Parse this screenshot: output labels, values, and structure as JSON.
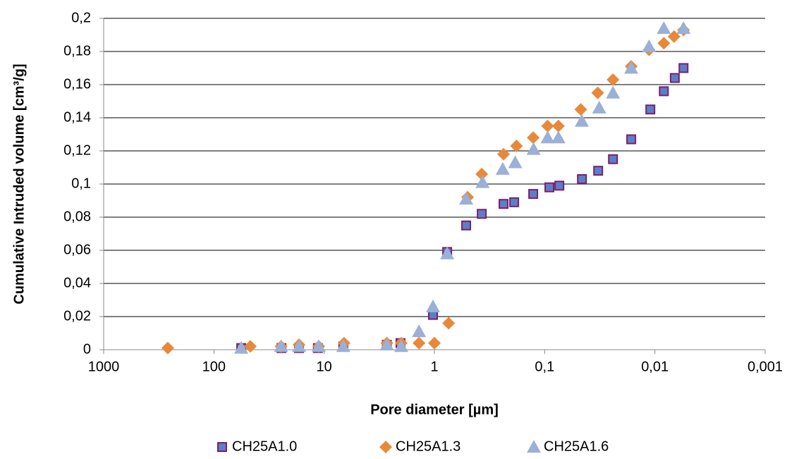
{
  "chart_data": {
    "type": "scatter",
    "x_label": "Pore diameter [µm]",
    "y_label": "Cumulative Intruded volume [cm³/g]",
    "x_scale": "log",
    "xlim": [
      1000,
      0.001
    ],
    "xticks": [
      1000,
      100,
      10,
      1,
      {
        "value": 0.1,
        "label": "0,1"
      },
      {
        "value": 0.01,
        "label": "0,01"
      },
      {
        "value": 0.001,
        "label": "0,001"
      }
    ],
    "ylim": [
      0,
      0.2
    ],
    "yticks": [
      0,
      {
        "value": 0.02,
        "label": "0,02"
      },
      {
        "value": 0.04,
        "label": "0,04"
      },
      {
        "value": 0.06,
        "label": "0,06"
      },
      {
        "value": 0.08,
        "label": "0,08"
      },
      {
        "value": 0.1,
        "label": "0,1"
      },
      {
        "value": 0.12,
        "label": "0,12"
      },
      {
        "value": 0.14,
        "label": "0,14"
      },
      {
        "value": 0.16,
        "label": "0,16"
      },
      {
        "value": 0.18,
        "label": "0,18"
      },
      {
        "value": 0.2,
        "label": "0,2"
      }
    ],
    "grid": true,
    "legend": "bottom",
    "series": [
      {
        "name": "CH25A1.0",
        "marker": "square",
        "color": "#5b7fc7",
        "edge_color": "#7a1f6f",
        "x": [
          56.5,
          24.4,
          16.9,
          11.4,
          6.7,
          2.7,
          2.03,
          1.03,
          0.766,
          0.515,
          0.372,
          0.236,
          0.189,
          0.127,
          0.0906,
          0.0736,
          0.0459,
          0.0327,
          0.024,
          0.0164,
          0.011,
          0.0083,
          0.0066,
          0.0055
        ],
        "values": [
          0.001,
          0.001,
          0.001,
          0.001,
          0.002,
          0.003,
          0.004,
          0.021,
          0.059,
          0.075,
          0.082,
          0.088,
          0.089,
          0.094,
          0.098,
          0.099,
          0.103,
          0.108,
          0.115,
          0.127,
          0.145,
          0.156,
          0.164,
          0.17
        ]
      },
      {
        "name": "CH25A1.3",
        "marker": "diamond",
        "color": "#e8893a",
        "x": [
          262,
          46.7,
          24.6,
          16.9,
          11.2,
          6.6,
          2.7,
          2.0,
          1.38,
          1.0,
          0.743,
          0.5,
          0.372,
          0.236,
          0.18,
          0.127,
          0.094,
          0.075,
          0.047,
          0.033,
          0.024,
          0.0164,
          0.0113,
          0.0083,
          0.0067,
          0.0055
        ],
        "values": [
          0.001,
          0.002,
          0.002,
          0.003,
          0.002,
          0.004,
          0.004,
          0.004,
          0.004,
          0.004,
          0.016,
          0.092,
          0.106,
          0.118,
          0.123,
          0.128,
          0.135,
          0.135,
          0.145,
          0.155,
          0.163,
          0.171,
          0.181,
          0.185,
          0.189,
          0.193
        ]
      },
      {
        "name": "CH25A1.6",
        "marker": "triangle",
        "color": "#9bb0d6",
        "x": [
          56.5,
          24.6,
          16.9,
          11.2,
          6.7,
          2.7,
          2.0,
          1.38,
          1.03,
          0.766,
          0.515,
          0.366,
          0.24,
          0.185,
          0.126,
          0.094,
          0.075,
          0.046,
          0.032,
          0.024,
          0.0164,
          0.0113,
          0.0083,
          0.0055
        ],
        "values": [
          0.001,
          0.002,
          0.002,
          0.002,
          0.002,
          0.003,
          0.002,
          0.011,
          0.026,
          0.058,
          0.091,
          0.101,
          0.109,
          0.113,
          0.121,
          0.128,
          0.128,
          0.138,
          0.146,
          0.155,
          0.17,
          0.183,
          0.194,
          0.194
        ]
      }
    ]
  }
}
